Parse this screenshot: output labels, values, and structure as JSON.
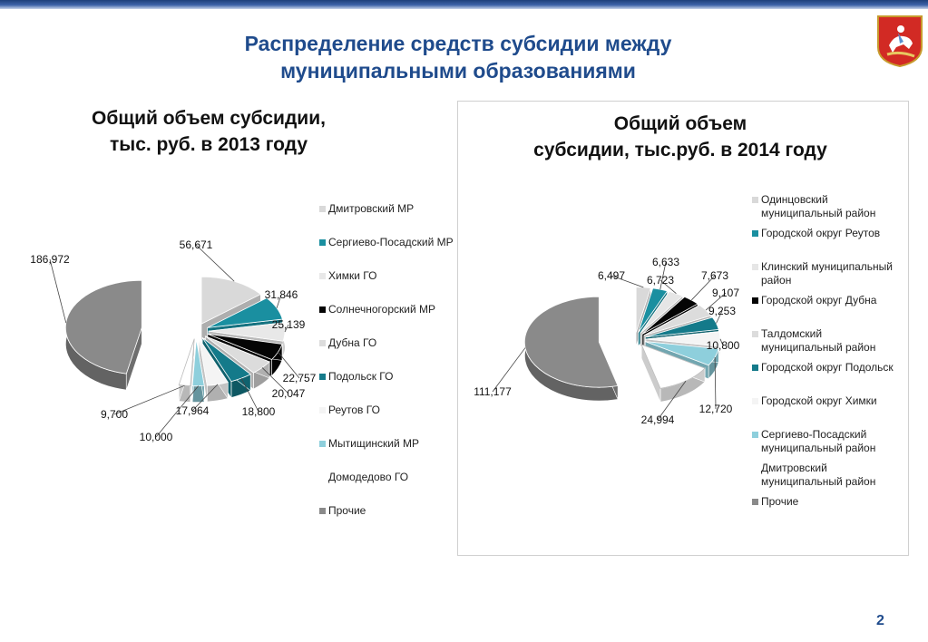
{
  "header": {
    "title_line1": "Распределение средств субсидии между",
    "title_line2": "муниципальными образованиями"
  },
  "page_number": "2",
  "chart_data": [
    {
      "type": "pie",
      "title_line1": "Общий объем субсидии,",
      "title_line2": "тыс. руб. в 2013 году",
      "slices": [
        {
          "label": "Дмитровский МР",
          "value": 56671,
          "value_label": "56,671",
          "color": "#d9d9d9"
        },
        {
          "label": "Сергиево-Посадский МР",
          "value": 31846,
          "value_label": "31,846",
          "color": "#1a8fa0"
        },
        {
          "label": "Химки ГО",
          "value": 25139,
          "value_label": "25,139",
          "color": "#e8e8e8"
        },
        {
          "label": "Солнечногорский МР",
          "value": 22757,
          "value_label": "22,757",
          "color": "#050505"
        },
        {
          "label": "Дубна ГО",
          "value": 20047,
          "value_label": "20,047",
          "color": "#dcdcdc"
        },
        {
          "label": "Подольск ГО",
          "value": 18800,
          "value_label": "18,800",
          "color": "#147a8a"
        },
        {
          "label": "Реутов ГО",
          "value": 17964,
          "value_label": "17,964",
          "color": "#f4f4f4"
        },
        {
          "label": "Мытищинский МР",
          "value": 10000,
          "value_label": "10,000",
          "color": "#8ecfdc"
        },
        {
          "label": "Домодедово ГО",
          "value": 9700,
          "value_label": "9,700",
          "color": "#ffffff"
        },
        {
          "label": "Прочие",
          "value": 186972,
          "value_label": "186,972",
          "color": "#8a8a8a"
        }
      ]
    },
    {
      "type": "pie",
      "title_line1": "Общий объем",
      "title_line2": "субсидии, тыс.руб. в 2014 году",
      "slices": [
        {
          "label": "Одинцовский муниципальный район",
          "value": 6497,
          "value_label": "6,497",
          "color": "#d9d9d9"
        },
        {
          "label": "Городской округ Реутов",
          "value": 6633,
          "value_label": "6,633",
          "color": "#1a8fa0"
        },
        {
          "label": "Клинский муниципальный район",
          "value": 6723,
          "value_label": "6,723",
          "color": "#e6e6e6"
        },
        {
          "label": "Городской округ Дубна",
          "value": 7673,
          "value_label": "7,673",
          "color": "#050505"
        },
        {
          "label": "Талдомский муниципальный район",
          "value": 9107,
          "value_label": "9,107",
          "color": "#dcdcdc"
        },
        {
          "label": "Городской округ Подольск",
          "value": 9253,
          "value_label": "9,253",
          "color": "#147a8a"
        },
        {
          "label": "Городской округ Химки",
          "value": 10800,
          "value_label": "10,800",
          "color": "#f4f4f4"
        },
        {
          "label": "Сергиево-Посадский муниципальный район",
          "value": 12720,
          "value_label": "12,720",
          "color": "#8ecfdc"
        },
        {
          "label": "Дмитровский муниципальный район",
          "value": 24994,
          "value_label": "24,994",
          "color": "#ffffff"
        },
        {
          "label": "Прочие",
          "value": 111177,
          "value_label": "111,177",
          "color": "#8a8a8a"
        }
      ]
    }
  ]
}
